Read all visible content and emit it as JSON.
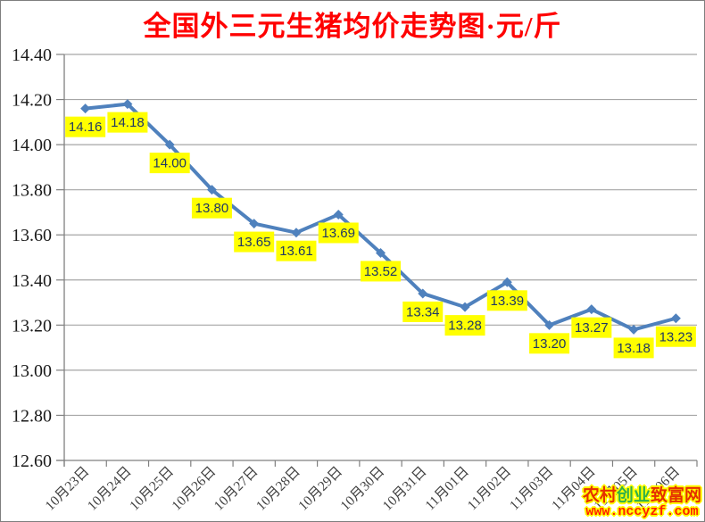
{
  "title": {
    "text": "全国外三元生猪均价走势图·元/斤"
  },
  "chart_data": {
    "type": "line",
    "title": "全国外三元生猪均价走势图·元/斤",
    "categories": [
      "10月23日",
      "10月24日",
      "10月25日",
      "10月26日",
      "10月27日",
      "10月28日",
      "10月29日",
      "10月30日",
      "10月31日",
      "11月01日",
      "11月02日",
      "11月03日",
      "11月04日",
      "11月05日",
      "11月06日"
    ],
    "values": [
      14.16,
      14.18,
      14.0,
      13.8,
      13.65,
      13.61,
      13.69,
      13.52,
      13.34,
      13.28,
      13.39,
      13.2,
      13.27,
      13.18,
      13.23
    ],
    "ylim": [
      12.6,
      14.4
    ],
    "ytick_step": 0.2,
    "ytick_labels": [
      "14.40",
      "14.20",
      "14.00",
      "13.80",
      "13.60",
      "13.40",
      "13.20",
      "13.00",
      "12.80",
      "12.60"
    ],
    "xlabel": "",
    "ylabel": "",
    "grid": true,
    "legend": "none",
    "marker": "diamond",
    "data_labels_visible": true,
    "data_label_decimals": 2
  },
  "colors": {
    "title": "#FF0000",
    "line": "#4F81BD",
    "marker": "#4F81BD",
    "data_label_bg": "#FFFF00",
    "data_label_text": "#1F3864",
    "gridline": "#A6A6A6",
    "axis": "#808080",
    "y_axis_label": "#1A1A1A",
    "x_axis_label": "#404040"
  },
  "watermark": {
    "site_name": "农村创业致富网",
    "site_name_char_colors": [
      "#E53000",
      "#E53000",
      "#2FAF4B",
      "#2FAF4B",
      "#E53000",
      "#E53000",
      "#E53000"
    ],
    "url": "www.nccyzf.com",
    "url_color": "#FF2000",
    "outline_color": "#FFFF00"
  }
}
